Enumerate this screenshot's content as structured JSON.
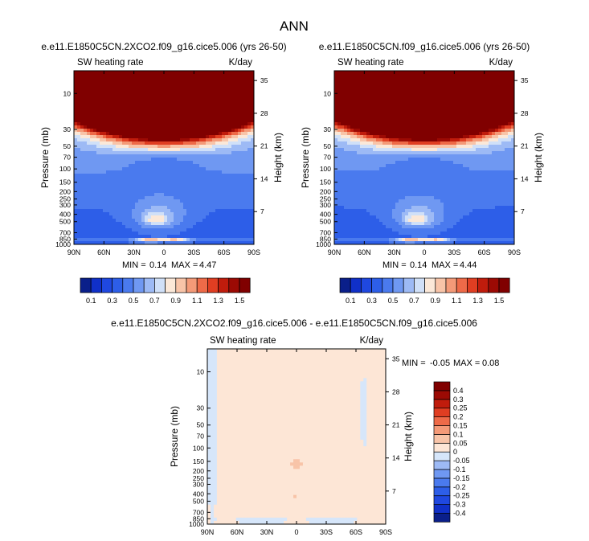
{
  "chart_data": {
    "type": "heatmap",
    "title": "ANN",
    "panels": [
      {
        "id": "p1",
        "title": "e.e11.E1850C5CN.2XCO2.f09_g16.cice5.006 (yrs 26-50)",
        "left_label": "SW heating rate",
        "right_label": "K/day",
        "ylabel": "Pressure (mb)",
        "y2label": "Height (km)",
        "stats": {
          "min_label": "MIN =",
          "min": "0.14",
          "max_label": "MAX =",
          "max": "4.47"
        },
        "xlim": [
          -90,
          90
        ],
        "ylim_mb": [
          1000,
          5
        ],
        "kind": "abs",
        "scale": 1.0
      },
      {
        "id": "p2",
        "title": "e.e11.E1850C5CN.f09_g16.cice5.006 (yrs 26-50)",
        "left_label": "SW heating rate",
        "right_label": "K/day",
        "ylabel": "Pressure (mb)",
        "y2label": "Height (km)",
        "stats": {
          "min_label": "MIN =",
          "min": "0.14",
          "max_label": "MAX =",
          "max": "4.44"
        },
        "xlim": [
          -90,
          90
        ],
        "ylim_mb": [
          1000,
          5
        ],
        "kind": "abs",
        "scale": 0.995
      },
      {
        "id": "p3",
        "title": "e.e11.E1850C5CN.2XCO2.f09_g16.cice5.006 - e.e11.E1850C5CN.f09_g16.cice5.006",
        "left_label": "SW heating rate",
        "right_label": "K/day",
        "ylabel": "Pressure (mb)",
        "y2label": "Height (km)",
        "stats": {
          "min_label": "MIN =",
          "min": "-0.05",
          "max_label": "MAX =",
          "max": "0.08"
        },
        "xlim": [
          -90,
          90
        ],
        "ylim_mb": [
          1000,
          5
        ],
        "kind": "diff",
        "scale": 1.0
      }
    ],
    "x_ticks": [
      {
        "v": 90,
        "label": "90N"
      },
      {
        "v": 60,
        "label": "60N"
      },
      {
        "v": 30,
        "label": "30N"
      },
      {
        "v": 0,
        "label": "0"
      },
      {
        "v": -30,
        "label": "30S"
      },
      {
        "v": -60,
        "label": "60S"
      },
      {
        "v": -90,
        "label": "90S"
      }
    ],
    "p_ticks": [
      10,
      30,
      50,
      70,
      100,
      150,
      200,
      250,
      300,
      400,
      500,
      700,
      850,
      1000
    ],
    "height_ticks_km": [
      7,
      14,
      21,
      28,
      35
    ],
    "abs_colorbar": {
      "levels": [
        0.1,
        0.2,
        0.3,
        0.4,
        0.5,
        0.6,
        0.7,
        0.8,
        0.9,
        1.0,
        1.1,
        1.2,
        1.3,
        1.4,
        1.5
      ],
      "labels": [
        "0.1",
        "0.3",
        "0.5",
        "0.7",
        "0.9",
        "1.1",
        "1.3",
        "1.5"
      ],
      "colors": [
        "#0a1f8a",
        "#1030c8",
        "#1f48e0",
        "#2d5ee8",
        "#4a7aee",
        "#6f98f2",
        "#9dbaf5",
        "#d0e0f8",
        "#fbe8d8",
        "#f8c4a8",
        "#f49a78",
        "#ee6a48",
        "#e03e22",
        "#c01c0c",
        "#9c0a04",
        "#800000"
      ]
    },
    "diff_colorbar": {
      "levels": [
        -0.4,
        -0.3,
        -0.25,
        -0.2,
        -0.15,
        -0.1,
        -0.05,
        0,
        0.05,
        0.1,
        0.15,
        0.2,
        0.25,
        0.3,
        0.4
      ],
      "labels": [
        "-0.4",
        "-0.3",
        "-0.25",
        "-0.2",
        "-0.15",
        "-0.1",
        "-0.05",
        "0",
        "0.05",
        "0.1",
        "0.15",
        "0.2",
        "0.25",
        "0.3",
        "0.4"
      ],
      "colors": [
        "#0a1f8a",
        "#1030c8",
        "#1f48e0",
        "#2d5ee8",
        "#4a7aee",
        "#6f98f2",
        "#9dbaf5",
        "#d6e6fa",
        "#fde6d6",
        "#f8c4a8",
        "#f49a78",
        "#ee6a48",
        "#e03e22",
        "#c01c0c",
        "#9c0a04",
        "#800000"
      ]
    }
  }
}
